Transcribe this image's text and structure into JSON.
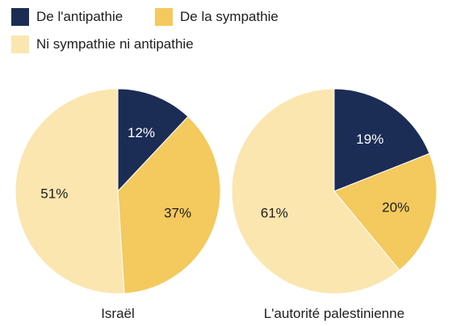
{
  "legend": {
    "items": [
      {
        "label": "De l'antipathie",
        "color": "#1b2d55"
      },
      {
        "label": "De la sympathie",
        "color": "#f4c95d"
      },
      {
        "label": "Ni sympathie ni antipathie",
        "color": "#fbe6b0"
      }
    ]
  },
  "chart_data": [
    {
      "type": "pie",
      "title": "Israël",
      "slices": [
        {
          "label": "De l'antipathie",
          "value": 12,
          "text": "12%",
          "color": "#1b2d55",
          "text_color": "#ffffff"
        },
        {
          "label": "De la sympathie",
          "value": 37,
          "text": "37%",
          "color": "#f4c95d",
          "text_color": "#1d1d1d"
        },
        {
          "label": "Ni sympathie ni antipathie",
          "value": 51,
          "text": "51%",
          "color": "#fbe6b0",
          "text_color": "#1d1d1d"
        }
      ]
    },
    {
      "type": "pie",
      "title": "L'autorité palestinienne",
      "slices": [
        {
          "label": "De l'antipathie",
          "value": 19,
          "text": "19%",
          "color": "#1b2d55",
          "text_color": "#ffffff"
        },
        {
          "label": "De la sympathie",
          "value": 20,
          "text": "20%",
          "color": "#f4c95d",
          "text_color": "#1d1d1d"
        },
        {
          "label": "Ni sympathie ni antipathie",
          "value": 61,
          "text": "61%",
          "color": "#fbe6b0",
          "text_color": "#1d1d1d"
        }
      ]
    }
  ]
}
